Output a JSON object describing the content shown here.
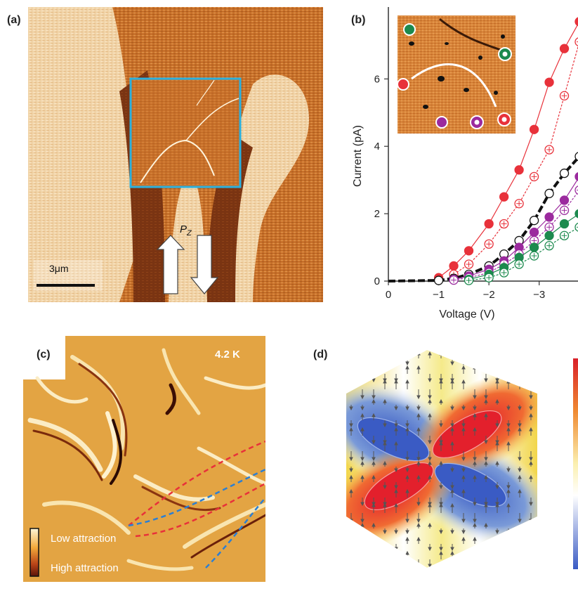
{
  "panels": {
    "a": {
      "label": "(a)",
      "scale_bar": "3μm",
      "polarization_label": "P",
      "polarization_sub": "Z"
    },
    "b": {
      "label": "(b)"
    },
    "c": {
      "label": "(c)",
      "temperature": "4.2 K",
      "legend": {
        "low": "Low attraction",
        "high": "High attraction"
      }
    },
    "d": {
      "label": "(d)"
    }
  },
  "colors": {
    "red": "#e8313a",
    "black": "#111111",
    "purple": "#9b2a9e",
    "green": "#1c8a4e",
    "inset_border": "#2bb0dd"
  },
  "chart_data": {
    "type": "line",
    "xlabel": "Voltage (V)",
    "ylabel": "Current (pA)",
    "xlim": [
      0,
      -3.8
    ],
    "ylim": [
      0,
      7.8
    ],
    "x_ticks": [
      0,
      -1,
      -2,
      -3
    ],
    "x_tick_labels": [
      "0",
      "−1",
      "−2",
      "−3"
    ],
    "y_ticks": [
      0,
      2,
      4,
      6
    ],
    "y_tick_labels": [
      "0",
      "2",
      "4",
      "6"
    ],
    "series": [
      {
        "color": "red",
        "marker": "filled",
        "x": [
          -1.0,
          -1.3,
          -1.6,
          -2.0,
          -2.3,
          -2.6,
          -2.9,
          -3.2,
          -3.5,
          -3.8
        ],
        "y": [
          0.1,
          0.45,
          0.9,
          1.7,
          2.5,
          3.3,
          4.5,
          5.9,
          6.9,
          7.7
        ]
      },
      {
        "color": "red",
        "marker": "open",
        "x": [
          -1.3,
          -1.6,
          -2.0,
          -2.3,
          -2.6,
          -2.9,
          -3.2,
          -3.5,
          -3.8
        ],
        "y": [
          0.2,
          0.5,
          1.1,
          1.7,
          2.3,
          3.1,
          3.9,
          5.5,
          7.1
        ]
      },
      {
        "color": "black",
        "marker": "open",
        "x": [
          0,
          -1.0,
          -1.3,
          -1.6,
          -2.0,
          -2.3,
          -2.6,
          -2.9,
          -3.2,
          -3.5,
          -3.8
        ],
        "y": [
          0,
          0.02,
          0.08,
          0.2,
          0.45,
          0.8,
          1.2,
          1.8,
          2.6,
          3.2,
          3.7
        ]
      },
      {
        "color": "purple",
        "marker": "filled",
        "x": [
          -1.3,
          -1.6,
          -2.0,
          -2.3,
          -2.6,
          -2.9,
          -3.2,
          -3.5,
          -3.8
        ],
        "y": [
          0.05,
          0.15,
          0.35,
          0.6,
          1.0,
          1.45,
          1.9,
          2.4,
          3.1
        ]
      },
      {
        "color": "purple",
        "marker": "open",
        "x": [
          -1.3,
          -1.6,
          -2.0,
          -2.3,
          -2.6,
          -2.9,
          -3.2,
          -3.5,
          -3.8
        ],
        "y": [
          0.03,
          0.1,
          0.25,
          0.5,
          0.8,
          1.2,
          1.6,
          2.1,
          2.7
        ]
      },
      {
        "color": "green",
        "marker": "filled",
        "x": [
          -1.6,
          -2.0,
          -2.3,
          -2.6,
          -2.9,
          -3.2,
          -3.5,
          -3.8
        ],
        "y": [
          0.05,
          0.2,
          0.4,
          0.7,
          1.0,
          1.35,
          1.7,
          2.0
        ]
      },
      {
        "color": "green",
        "marker": "open",
        "x": [
          -1.6,
          -2.0,
          -2.3,
          -2.6,
          -2.9,
          -3.2,
          -3.5,
          -3.8
        ],
        "y": [
          0.02,
          0.1,
          0.25,
          0.5,
          0.75,
          1.05,
          1.35,
          1.6
        ]
      }
    ]
  }
}
